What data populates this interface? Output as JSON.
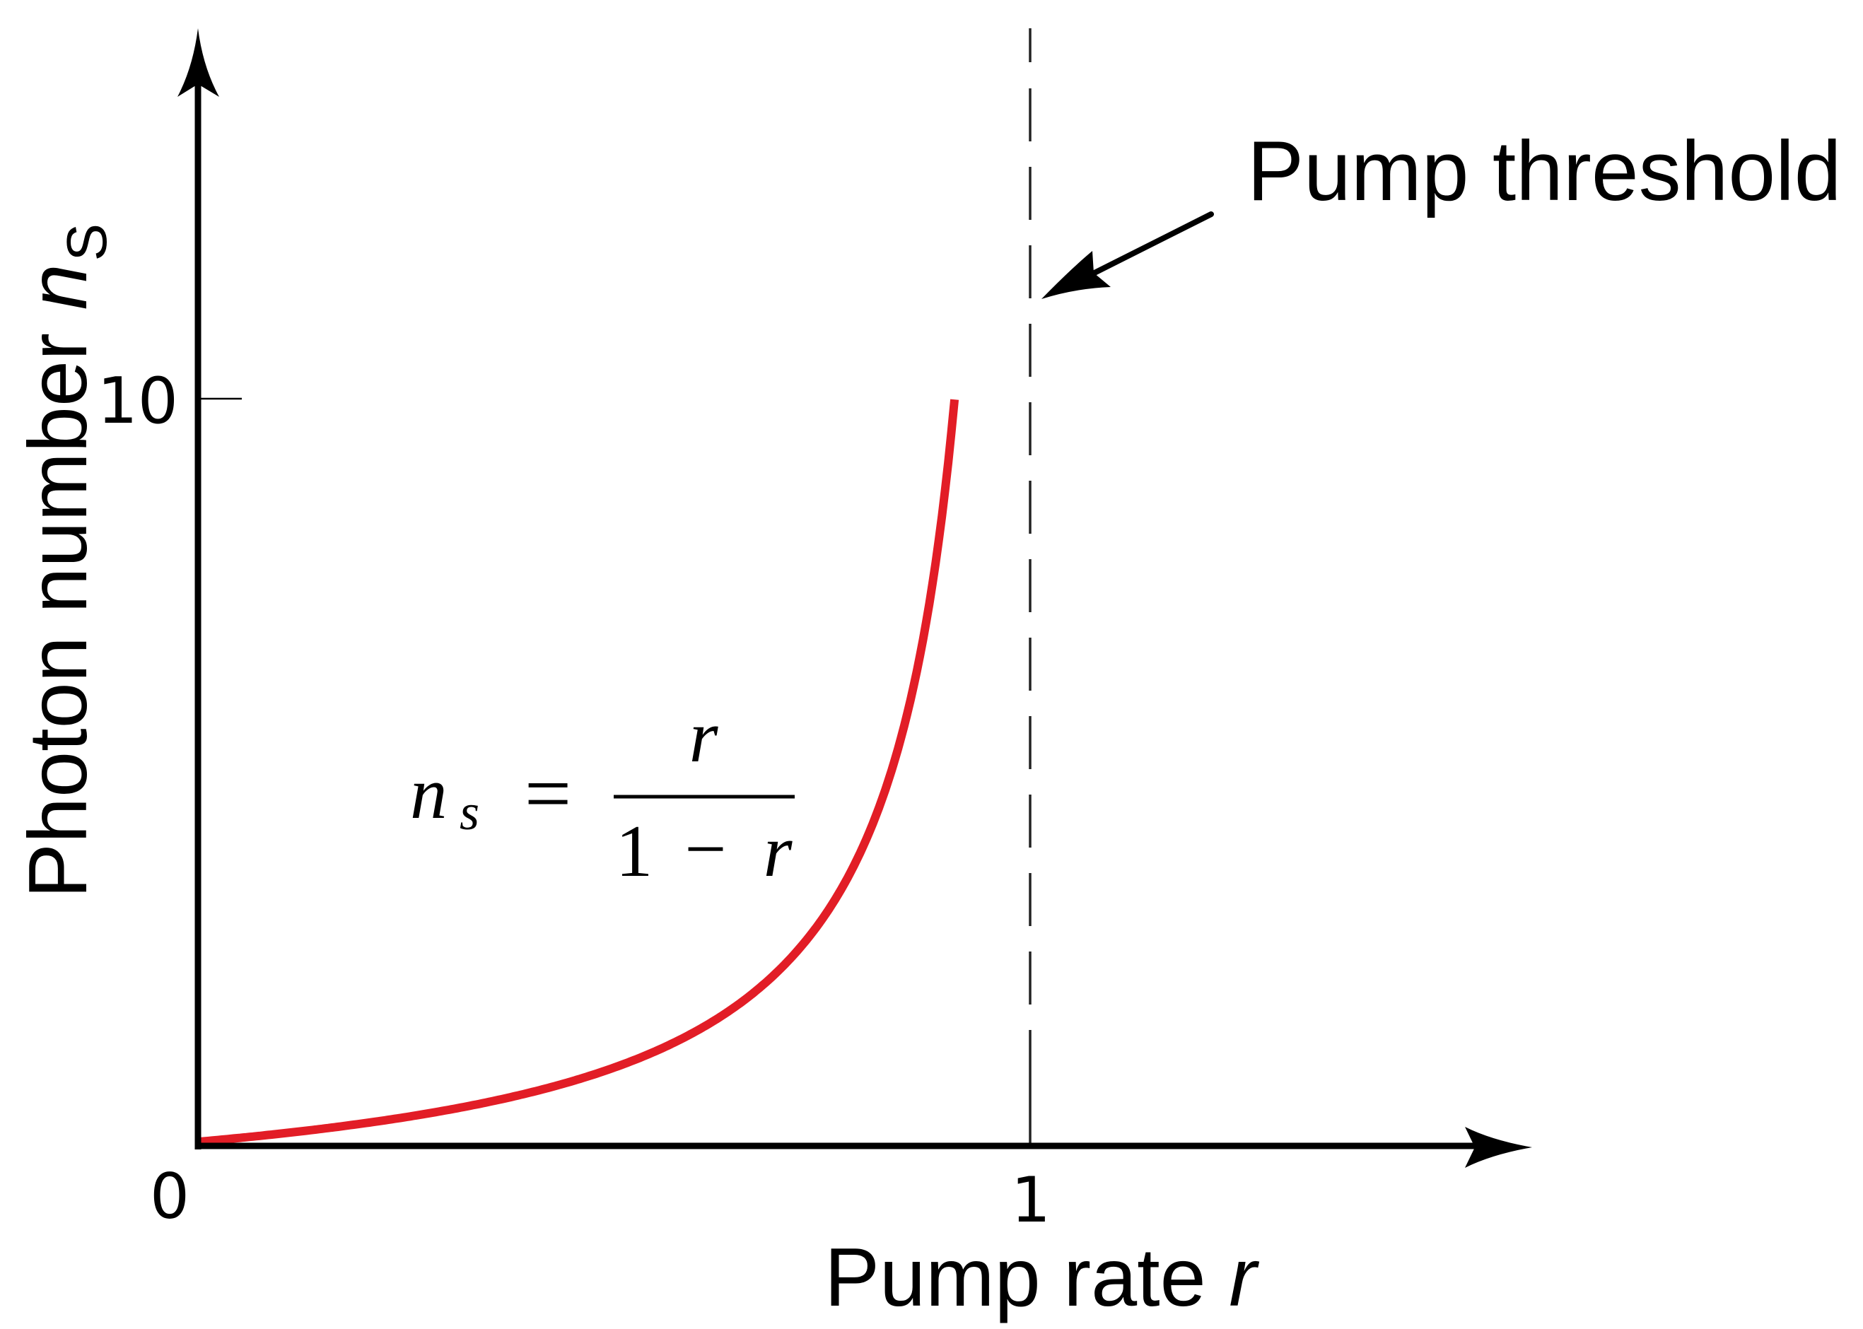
{
  "chart_data": {
    "type": "line",
    "title": "",
    "xlabel": "Pump rate r",
    "xlabel_parts": {
      "text": "Pump rate ",
      "var": "r"
    },
    "ylabel": "Photon number n_s",
    "ylabel_parts": {
      "text": "Photon number ",
      "var": "n",
      "sub": "S"
    },
    "x_ticks": [
      {
        "value": 0,
        "label": "0"
      },
      {
        "value": 1,
        "label": "1"
      }
    ],
    "y_ticks": [
      {
        "value": 10,
        "label": "10"
      }
    ],
    "xlim": [
      0,
      1.6
    ],
    "ylim": [
      0,
      14
    ],
    "grid": false,
    "legend": null,
    "series": [
      {
        "name": "n_s = r / (1 - r)",
        "color": "#E21D26",
        "x": [
          0,
          0.1,
          0.2,
          0.3,
          0.4,
          0.5,
          0.6,
          0.65,
          0.7,
          0.75,
          0.8,
          0.83,
          0.85,
          0.87,
          0.89,
          0.909
        ],
        "y": [
          0,
          0.111,
          0.25,
          0.429,
          0.667,
          1.0,
          1.5,
          1.857,
          2.333,
          3.0,
          4.0,
          4.882,
          5.667,
          6.692,
          8.091,
          10.0
        ]
      }
    ],
    "annotations": [
      {
        "type": "equation",
        "lhs_var": "n",
        "lhs_sub": "s",
        "equals": "=",
        "numerator": "r",
        "denominator_left": "1",
        "denominator_op": "−",
        "denominator_var": "r"
      },
      {
        "type": "vline",
        "x": 1,
        "style": "dashed",
        "label": "Pump threshold"
      },
      {
        "type": "arrow",
        "text": "Pump threshold",
        "points_to": "dashed line at r = 1"
      }
    ]
  },
  "labels": {
    "x_axis_text": "Pump rate ",
    "x_axis_var": "r",
    "y_axis_text": "Photon number ",
    "y_axis_var": "n",
    "y_axis_sub": "S",
    "tick_x0": "0",
    "tick_x1": "1",
    "tick_y10": "10",
    "threshold": "Pump threshold",
    "eq_lhs": "n",
    "eq_sub": "s",
    "eq_equals": "=",
    "eq_num": "r",
    "eq_den_one": "1",
    "eq_den_minus": "−",
    "eq_den_r": "r"
  },
  "colors": {
    "curve": "#E21D26",
    "axis": "#000000",
    "threshold_line": "#222222"
  }
}
